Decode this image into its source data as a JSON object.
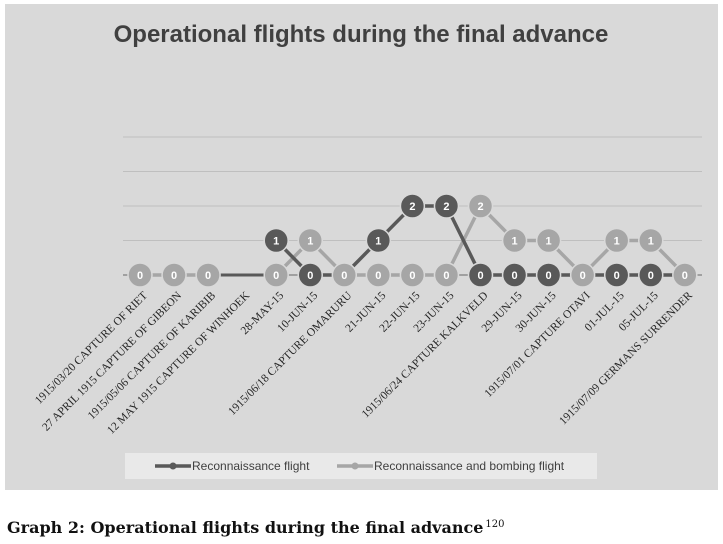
{
  "chart_data": {
    "type": "line",
    "title": "Operational flights during the final advance",
    "xlabel": "",
    "ylabel": "",
    "ylim": [
      0,
      4
    ],
    "categories": [
      "1915/03/20 CAPTURE OF RIET",
      "27 APRIL 1915 CAPTURE OF GIBEON",
      "1915/05/06 CAPTURE OF KARIBIB",
      "12 MAY 1915 CAPTURE OF WINHOEK",
      "28-MAY-15",
      "10-JUN-15",
      "1915/06/18 CAPTURE OMARURU",
      "21-JUN-15",
      "22-JUN-15",
      "23-JUN-15",
      "1915/06/24 CAPTURE KALKVELD",
      "29-JUN-15",
      "30-JUN-15",
      "1915/07/01 CAPTURE OTAVI",
      "01-JUL-15",
      "05-JUL-15",
      "1915/07/09 GERMANS SURRENDER"
    ],
    "series": [
      {
        "name": "Reconnaissance flight",
        "color": "#595959",
        "values": [
          null,
          null,
          null,
          null,
          1,
          0,
          0,
          1,
          2,
          2,
          0,
          0,
          0,
          0,
          0,
          0,
          0
        ],
        "labels": [
          "0",
          "0",
          "0",
          null,
          "1",
          "0",
          null,
          "1",
          "2",
          "2",
          "0",
          "0",
          "0",
          null,
          "0",
          "0",
          null
        ]
      },
      {
        "name": "Reconnaissance and bombing flight",
        "color": "#a6a6a6",
        "values": [
          0,
          0,
          0,
          null,
          0,
          1,
          0,
          0,
          0,
          0,
          2,
          1,
          1,
          0,
          1,
          1,
          0
        ],
        "labels": [
          "0",
          "0",
          "0",
          null,
          "0",
          "1",
          "0",
          "0",
          "0",
          "0",
          "2",
          "1",
          "1",
          "0",
          "1",
          "1",
          "0"
        ]
      }
    ],
    "baseline_segment": {
      "from_index": 2,
      "to_index": 4,
      "value": 0
    },
    "grid": true,
    "legend": "bottom-center"
  },
  "caption": {
    "text": "Graph 2: Operational flights during the final advance",
    "footnote": "120"
  }
}
